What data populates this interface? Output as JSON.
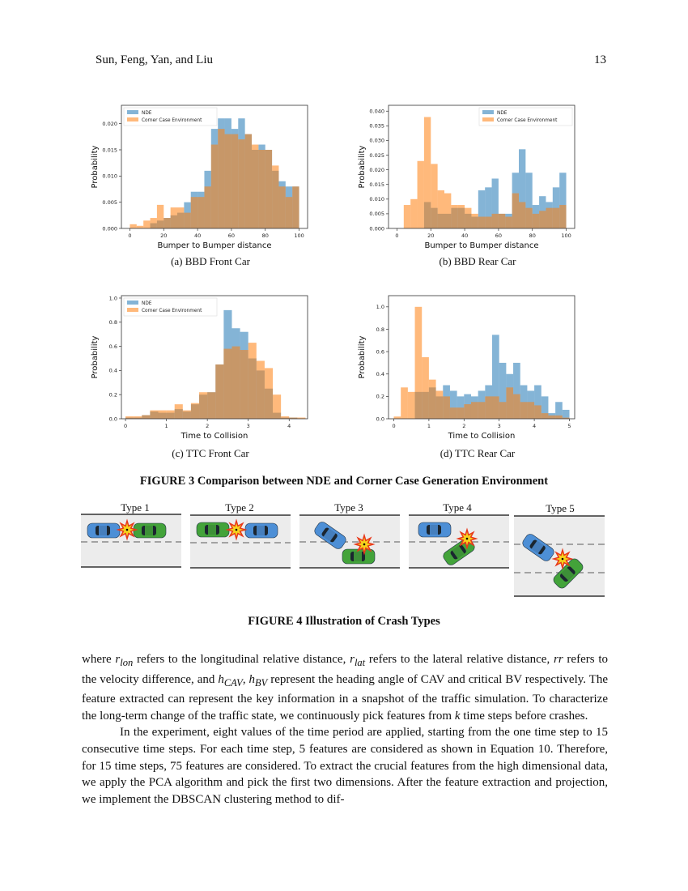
{
  "header": {
    "authors": "Sun, Feng, Yan, and Liu",
    "page_number": "13"
  },
  "colors": {
    "nde": "#1f77b4",
    "cce": "#ff7f0e"
  },
  "chart_data": [
    {
      "type": "bar",
      "id": "a",
      "caption": "(a)  BBD Front Car",
      "xlabel": "Bumper to Bumper distance",
      "ylabel": "Probability",
      "xlim": [
        -5,
        105
      ],
      "ylim": [
        0,
        0.0235
      ],
      "xticks": [
        0,
        20,
        40,
        60,
        80,
        100
      ],
      "yticks": [
        "0.000",
        "0.005",
        "0.010",
        "0.015",
        "0.020"
      ],
      "bin_width": 4,
      "x_start": 0,
      "legend": "top-left",
      "grid": false,
      "series": [
        {
          "name": "NDE",
          "values": [
            0,
            0,
            0,
            0.001,
            0.0015,
            0.002,
            0.0025,
            0.003,
            0.005,
            0.007,
            0.007,
            0.011,
            0.019,
            0.021,
            0.021,
            0.019,
            0.021,
            0.018,
            0.015,
            0.016,
            0.015,
            0.011,
            0.009,
            0.008,
            0.008
          ]
        },
        {
          "name": "Corner Case Environment",
          "values": [
            0.0008,
            0.0005,
            0.0015,
            0.002,
            0.0045,
            0.002,
            0.004,
            0.004,
            0.003,
            0.006,
            0.006,
            0.008,
            0.016,
            0.019,
            0.018,
            0.018,
            0.017,
            0.018,
            0.016,
            0.015,
            0.015,
            0.012,
            0.008,
            0.006,
            0.008
          ]
        }
      ]
    },
    {
      "type": "bar",
      "id": "b",
      "caption": "(b)  BBD Rear Car",
      "xlabel": "Bumper to Bumper distance",
      "ylabel": "Probability",
      "xlim": [
        -5,
        105
      ],
      "ylim": [
        0,
        0.042
      ],
      "xticks": [
        0,
        20,
        40,
        60,
        80,
        100
      ],
      "yticks": [
        "0.000",
        "0.005",
        "0.010",
        "0.015",
        "0.020",
        "0.025",
        "0.030",
        "0.035",
        "0.040"
      ],
      "bin_width": 4,
      "x_start": 0,
      "legend": "top-right",
      "grid": false,
      "series": [
        {
          "name": "NDE",
          "values": [
            0,
            0,
            0,
            0,
            0.009,
            0.007,
            0.005,
            0.005,
            0.007,
            0.007,
            0.005,
            0.004,
            0.013,
            0.014,
            0.017,
            0.005,
            0.005,
            0.019,
            0.027,
            0.019,
            0.008,
            0.011,
            0.009,
            0.014,
            0.019
          ]
        },
        {
          "name": "Corner Case Environment",
          "values": [
            0,
            0.008,
            0.01,
            0.023,
            0.038,
            0.022,
            0.013,
            0.012,
            0.008,
            0.008,
            0.007,
            0.005,
            0.004,
            0.004,
            0.005,
            0.005,
            0.004,
            0.012,
            0.009,
            0.007,
            0.005,
            0.006,
            0.007,
            0.007,
            0.008
          ]
        }
      ]
    },
    {
      "type": "bar",
      "id": "c",
      "caption": "(c)  TTC Front Car",
      "xlabel": "Time to Collision",
      "ylabel": "Probability",
      "xlim": [
        -0.1,
        4.45
      ],
      "ylim": [
        0,
        1.02
      ],
      "xticks": [
        0,
        1,
        2,
        3,
        4
      ],
      "yticks": [
        "0.0",
        "0.2",
        "0.4",
        "0.6",
        "0.8",
        "1.0"
      ],
      "bin_width": 0.2,
      "x_start": 0,
      "legend": "top-left",
      "grid": false,
      "series": [
        {
          "name": "NDE",
          "values": [
            0.01,
            0.01,
            0.03,
            0.06,
            0.05,
            0.05,
            0.08,
            0.06,
            0.12,
            0.2,
            0.22,
            0.45,
            0.9,
            0.75,
            0.72,
            0.5,
            0.4,
            0.25,
            0.05,
            0.01,
            0.01,
            0
          ]
        },
        {
          "name": "Corner Case Environment",
          "values": [
            0.02,
            0.02,
            0.03,
            0.07,
            0.07,
            0.07,
            0.12,
            0.07,
            0.13,
            0.22,
            0.22,
            0.45,
            0.58,
            0.6,
            0.57,
            0.63,
            0.48,
            0.42,
            0.2,
            0.02,
            0.01,
            0.01
          ]
        }
      ]
    },
    {
      "type": "bar",
      "id": "d",
      "caption": "(d)  TTC Rear Car",
      "xlabel": "Time to Collision",
      "ylabel": "Probability",
      "xlim": [
        -0.15,
        5.15
      ],
      "ylim": [
        0,
        1.1
      ],
      "xticks": [
        0,
        1,
        2,
        3,
        4,
        5
      ],
      "yticks": [
        "0.0",
        "0.2",
        "0.4",
        "0.6",
        "0.8",
        "1.0"
      ],
      "bin_width": 0.2,
      "x_start": 0,
      "legend": "none",
      "grid": false,
      "series": [
        {
          "values": [
            0,
            0,
            0,
            0.24,
            0.24,
            0.28,
            0.2,
            0.3,
            0.25,
            0.2,
            0.22,
            0.2,
            0.25,
            0.3,
            0.75,
            0.5,
            0.4,
            0.5,
            0.3,
            0.25,
            0.3,
            0.2,
            0.05,
            0.15,
            0.08
          ]
        },
        {
          "values": [
            0.02,
            0.28,
            0.24,
            1.0,
            0.55,
            0.35,
            0.25,
            0.2,
            0.1,
            0.1,
            0.13,
            0.15,
            0.15,
            0.2,
            0.2,
            0.15,
            0.28,
            0.22,
            0.15,
            0.15,
            0.12,
            0.05,
            0.03,
            0.03,
            0.01
          ]
        }
      ]
    }
  ],
  "figure3_caption": "FIGURE 3 Comparison between NDE and Corner Case Generation Environment",
  "crash_types": [
    "Type 1",
    "Type 2",
    "Type 3",
    "Type 4",
    "Type 5"
  ],
  "figure4_caption": "FIGURE 4 Illustration of Crash Types",
  "paragraph1": {
    "t1": "where ",
    "r": "r",
    "lon": "lon",
    "t2": " refers to the longitudinal relative distance, ",
    "lat": "lat",
    "t3": " refers to the lateral relative distance, ",
    "rr": "rr",
    "t4": " refers to the velocity difference, and ",
    "h": "h",
    "cav": "CAV",
    "t5": ", ",
    "bv": "BV",
    "t6": " represent the heading angle of CAV and critical BV respectively.  The feature extracted can represent the key information in a snapshot of the traffic simulation. To characterize the long-term change of the traffic state, we continuously pick features from ",
    "k": "k",
    "t7": " time steps before crashes."
  },
  "paragraph2": "In the experiment, eight values of the time period are applied, starting from the one time step to 15 consecutive time steps. For each time step, 5 features are considered as shown in Equation 10.  Therefore, for 15 time steps, 75 features are considered.  To extract the crucial features from the high dimensional data, we apply the PCA algorithm and pick the first two dimensions. After the feature extraction and projection, we implement the DBSCAN clustering method to dif-"
}
